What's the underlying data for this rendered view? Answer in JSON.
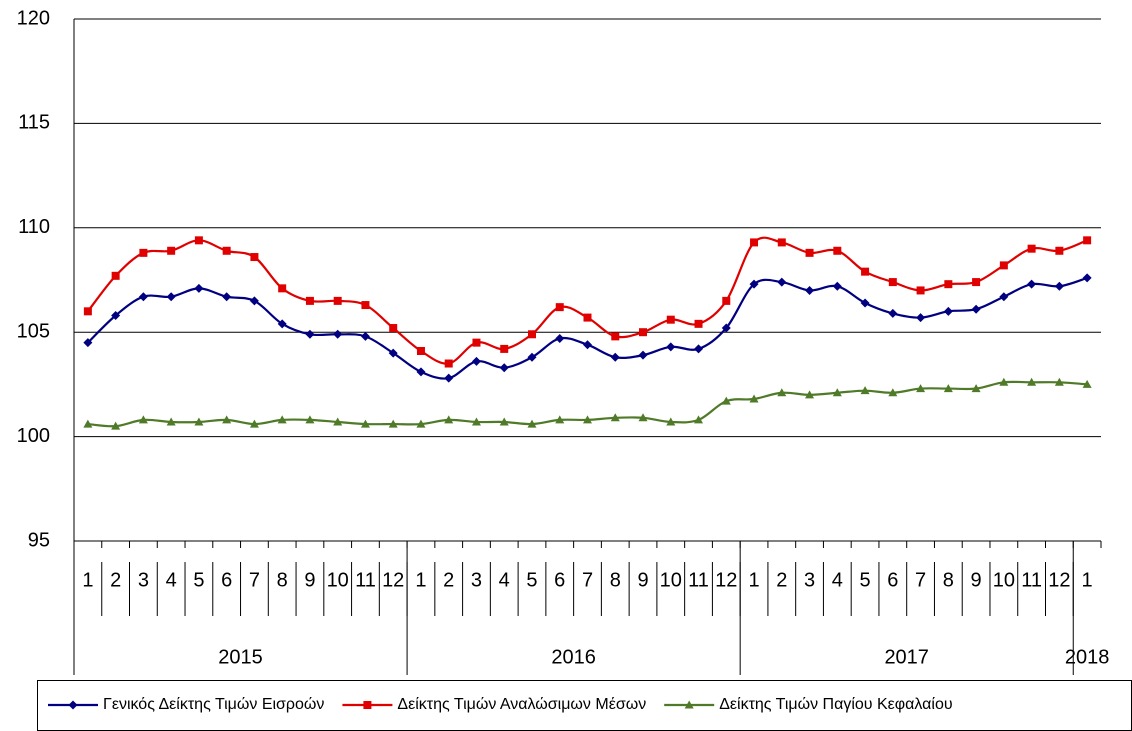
{
  "chart_data": {
    "type": "line",
    "categories": [
      {
        "month": "1",
        "year": "2015"
      },
      {
        "month": "2",
        "year": "2015"
      },
      {
        "month": "3",
        "year": "2015"
      },
      {
        "month": "4",
        "year": "2015"
      },
      {
        "month": "5",
        "year": "2015"
      },
      {
        "month": "6",
        "year": "2015"
      },
      {
        "month": "7",
        "year": "2015"
      },
      {
        "month": "8",
        "year": "2015"
      },
      {
        "month": "9",
        "year": "2015"
      },
      {
        "month": "10",
        "year": "2015"
      },
      {
        "month": "11",
        "year": "2015"
      },
      {
        "month": "12",
        "year": "2015"
      },
      {
        "month": "1",
        "year": "2016"
      },
      {
        "month": "2",
        "year": "2016"
      },
      {
        "month": "3",
        "year": "2016"
      },
      {
        "month": "4",
        "year": "2016"
      },
      {
        "month": "5",
        "year": "2016"
      },
      {
        "month": "6",
        "year": "2016"
      },
      {
        "month": "7",
        "year": "2016"
      },
      {
        "month": "8",
        "year": "2016"
      },
      {
        "month": "9",
        "year": "2016"
      },
      {
        "month": "10",
        "year": "2016"
      },
      {
        "month": "11",
        "year": "2016"
      },
      {
        "month": "12",
        "year": "2016"
      },
      {
        "month": "1",
        "year": "2017"
      },
      {
        "month": "2",
        "year": "2017"
      },
      {
        "month": "3",
        "year": "2017"
      },
      {
        "month": "4",
        "year": "2017"
      },
      {
        "month": "5",
        "year": "2017"
      },
      {
        "month": "6",
        "year": "2017"
      },
      {
        "month": "7",
        "year": "2017"
      },
      {
        "month": "8",
        "year": "2017"
      },
      {
        "month": "9",
        "year": "2017"
      },
      {
        "month": "10",
        "year": "2017"
      },
      {
        "month": "11",
        "year": "2017"
      },
      {
        "month": "12",
        "year": "2017"
      },
      {
        "month": "1",
        "year": "2018"
      }
    ],
    "series": [
      {
        "name": "Γενικός Δείκτης Τιμών Εισροών",
        "color": "#000080",
        "marker": "diamond",
        "values": [
          104.5,
          105.8,
          106.7,
          106.7,
          107.1,
          106.7,
          106.5,
          105.4,
          104.9,
          104.9,
          104.8,
          104.0,
          103.1,
          102.8,
          103.6,
          103.3,
          103.8,
          104.7,
          104.4,
          103.8,
          103.9,
          104.3,
          104.2,
          105.2,
          107.3,
          107.4,
          107.0,
          107.2,
          106.4,
          105.9,
          105.7,
          106.0,
          106.1,
          106.7,
          107.3,
          107.2,
          107.6
        ]
      },
      {
        "name": "Δείκτης Τιμών Αναλώσιμων Μέσων",
        "color": "#e00000",
        "marker": "square",
        "values": [
          106.0,
          107.7,
          108.8,
          108.9,
          109.4,
          108.9,
          108.6,
          107.1,
          106.5,
          106.5,
          106.3,
          105.2,
          104.1,
          103.5,
          104.5,
          104.2,
          104.9,
          106.2,
          105.7,
          104.8,
          105.0,
          105.6,
          105.4,
          106.5,
          109.3,
          109.3,
          108.8,
          108.9,
          107.9,
          107.4,
          107.0,
          107.3,
          107.4,
          108.2,
          109.0,
          108.9,
          109.4
        ]
      },
      {
        "name": "Δείκτης Τιμών Παγίου Κεφαλαίου",
        "color": "#4f7a28",
        "marker": "triangle",
        "values": [
          100.6,
          100.5,
          100.8,
          100.7,
          100.7,
          100.8,
          100.6,
          100.8,
          100.8,
          100.7,
          100.6,
          100.6,
          100.6,
          100.8,
          100.7,
          100.7,
          100.6,
          100.8,
          100.8,
          100.9,
          100.9,
          100.7,
          100.8,
          101.7,
          101.8,
          102.1,
          102.0,
          102.1,
          102.2,
          102.1,
          102.3,
          102.3,
          102.3,
          102.6,
          102.6,
          102.6,
          102.5
        ]
      }
    ],
    "ylim": [
      95,
      120
    ],
    "yticks": [
      95,
      100,
      105,
      110,
      115,
      120
    ],
    "grid": true,
    "legend": "bottom"
  }
}
